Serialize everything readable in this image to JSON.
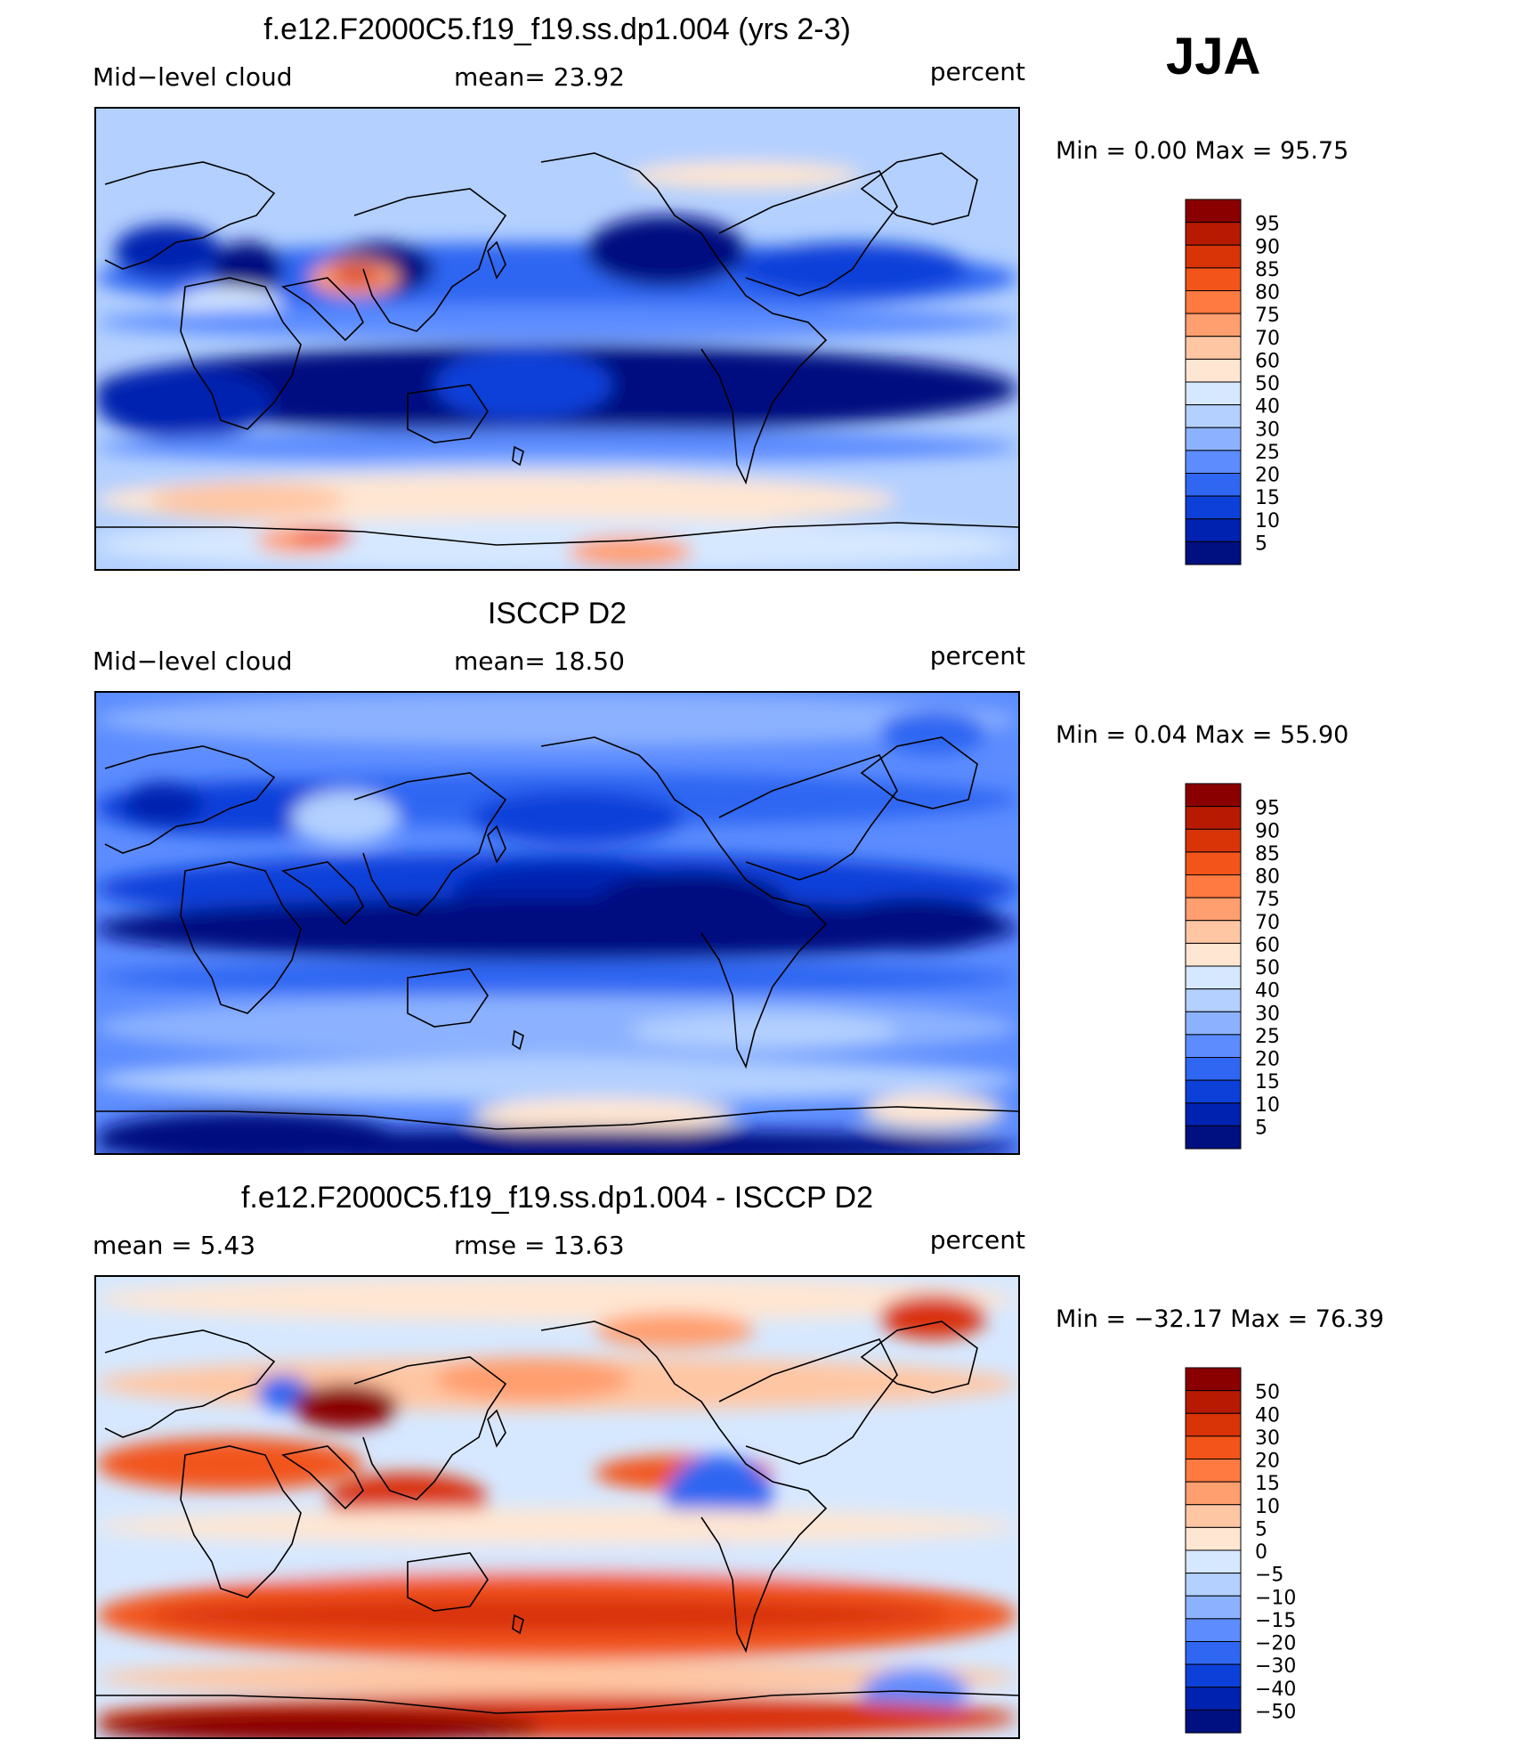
{
  "season": "JJA",
  "panels": [
    {
      "title": "f.e12.F2000C5.f19_f19.ss.dp1.004 (yrs 2-3)",
      "left_label": "Mid−level cloud",
      "center_label": "mean=   23.92",
      "units": "percent",
      "minmax": "Min =    0.00  Max =   95.75",
      "colorbar": {
        "levels": [
          "95",
          "90",
          "85",
          "80",
          "75",
          "70",
          "60",
          "50",
          "40",
          "30",
          "25",
          "20",
          "15",
          "10",
          "5"
        ],
        "colors": [
          "#8a0000",
          "#b71a00",
          "#d93308",
          "#f2541a",
          "#ff7a40",
          "#ff9e6e",
          "#ffc6a3",
          "#ffe6d2",
          "#d6e8ff",
          "#b3d0ff",
          "#8cb2ff",
          "#5c8cff",
          "#2f66f2",
          "#0d40d9",
          "#0022b0",
          "#001080"
        ]
      },
      "field": "model"
    },
    {
      "title": "ISCCP D2",
      "left_label": "Mid−level cloud",
      "center_label": "mean=   18.50",
      "units": "percent",
      "minmax": "Min =    0.04  Max =   55.90",
      "colorbar": {
        "levels": [
          "95",
          "90",
          "85",
          "80",
          "75",
          "70",
          "60",
          "50",
          "40",
          "30",
          "25",
          "20",
          "15",
          "10",
          "5"
        ],
        "colors": [
          "#8a0000",
          "#b71a00",
          "#d93308",
          "#f2541a",
          "#ff7a40",
          "#ff9e6e",
          "#ffc6a3",
          "#ffe6d2",
          "#d6e8ff",
          "#b3d0ff",
          "#8cb2ff",
          "#5c8cff",
          "#2f66f2",
          "#0d40d9",
          "#0022b0",
          "#001080"
        ]
      },
      "field": "obs"
    },
    {
      "title": "f.e12.F2000C5.f19_f19.ss.dp1.004 - ISCCP D2",
      "left_label": "mean =     5.43",
      "center_label": "rmse =    13.63",
      "units": "percent",
      "minmax": "Min = −32.17  Max =   76.39",
      "colorbar": {
        "levels": [
          "50",
          "40",
          "30",
          "20",
          "15",
          "10",
          "5",
          "0",
          "−5",
          "−10",
          "−15",
          "−20",
          "−30",
          "−40",
          "−50"
        ],
        "colors": [
          "#8a0000",
          "#b71a00",
          "#d93308",
          "#f2541a",
          "#ff7a40",
          "#ff9e6e",
          "#ffc6a3",
          "#ffe6d2",
          "#d6e8ff",
          "#b3d0ff",
          "#8cb2ff",
          "#5c8cff",
          "#2f66f2",
          "#0d40d9",
          "#0022b0",
          "#001080"
        ]
      },
      "field": "diff"
    }
  ],
  "chart_data": [
    {
      "type": "heatmap",
      "title": "f.e12.F2000C5.f19_f19.ss.dp1.004 (yrs 2-3)",
      "variable": "Mid−level cloud",
      "units": "percent",
      "mean": 23.92,
      "min": 0.0,
      "max": 95.75,
      "season": "JJA",
      "projection": "global lat-lon, 0°E centered",
      "contour_levels": [
        5,
        10,
        15,
        20,
        25,
        30,
        40,
        50,
        60,
        70,
        75,
        80,
        85,
        90,
        95
      ]
    },
    {
      "type": "heatmap",
      "title": "ISCCP D2",
      "variable": "Mid−level cloud",
      "units": "percent",
      "mean": 18.5,
      "min": 0.04,
      "max": 55.9,
      "season": "JJA",
      "projection": "global lat-lon, 0°E centered",
      "contour_levels": [
        5,
        10,
        15,
        20,
        25,
        30,
        40,
        50,
        60,
        70,
        75,
        80,
        85,
        90,
        95
      ]
    },
    {
      "type": "heatmap",
      "title": "f.e12.F2000C5.f19_f19.ss.dp1.004 - ISCCP D2",
      "units": "percent",
      "mean": 5.43,
      "rmse": 13.63,
      "min": -32.17,
      "max": 76.39,
      "season": "JJA",
      "contour_levels": [
        -50,
        -40,
        -30,
        -20,
        -15,
        -10,
        -5,
        0,
        5,
        10,
        15,
        20,
        30,
        40,
        50
      ]
    }
  ]
}
